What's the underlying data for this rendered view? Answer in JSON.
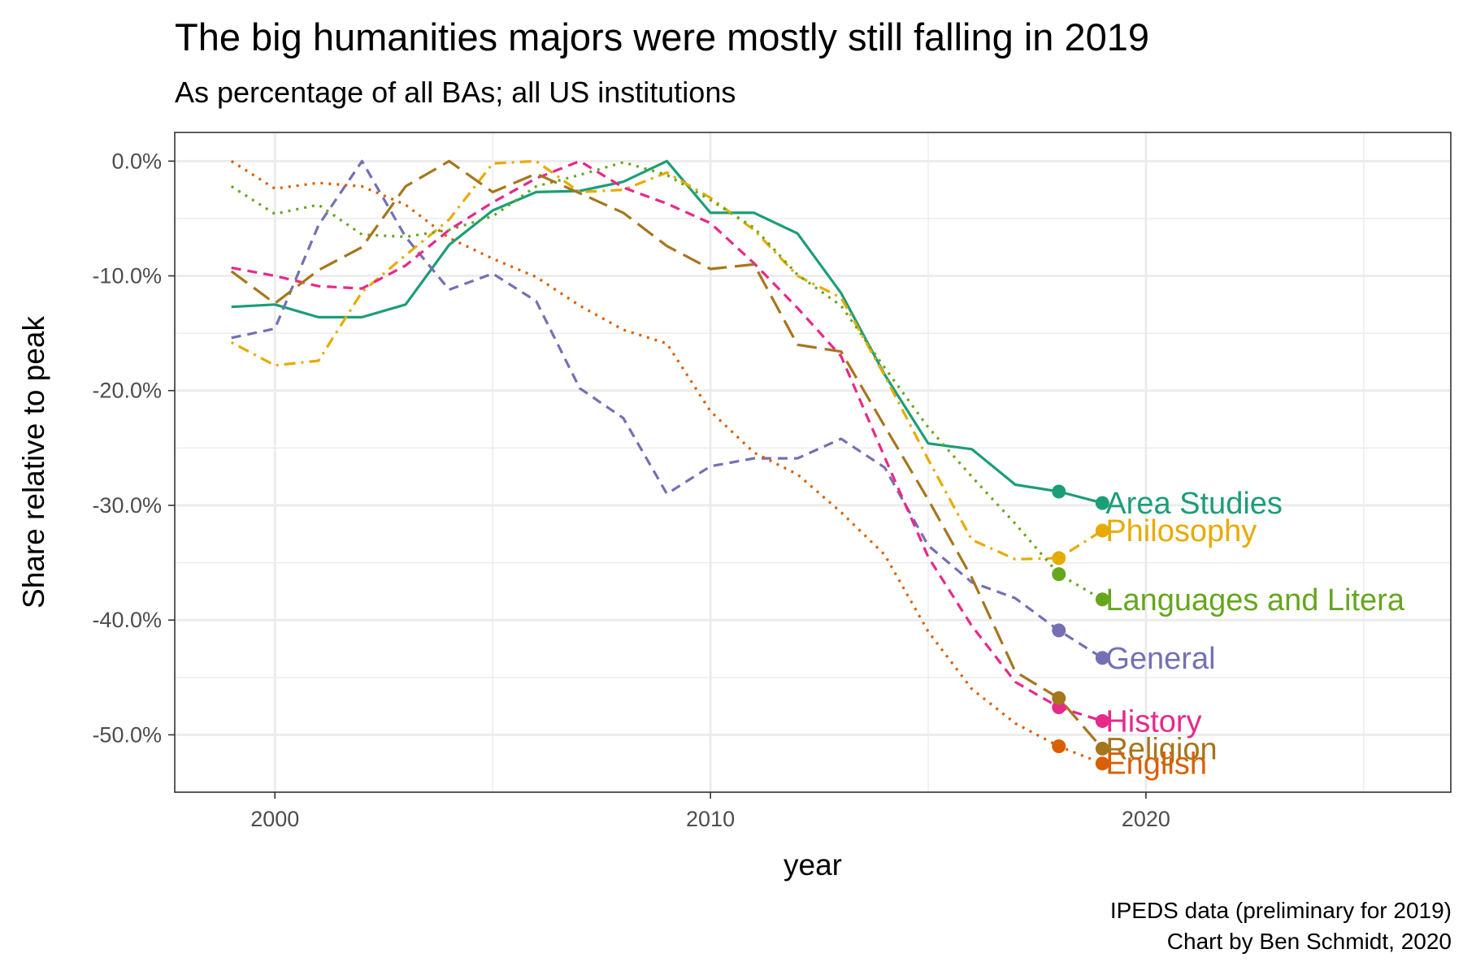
{
  "chart_data": {
    "type": "line",
    "title": "The big humanities majors were mostly still falling in 2019",
    "subtitle": "As percentage of all BAs; all US institutions",
    "xlabel": "year",
    "ylabel": "Share relative to peak",
    "caption": [
      "IPEDS data (preliminary for 2019)",
      "Chart by Ben Schmidt, 2020"
    ],
    "xlim": [
      1997.7,
      2027.0
    ],
    "ylim": [
      -55.0,
      2.5
    ],
    "x_ticks": [
      2000,
      2010,
      2020
    ],
    "x_tick_labels": [
      "2000",
      "2010",
      "2020"
    ],
    "y_ticks": [
      0,
      -10,
      -20,
      -30,
      -40,
      -50
    ],
    "y_tick_labels": [
      "0.0%",
      "-10.0%",
      "-20.0%",
      "-30.0%",
      "-40.0%",
      "-50.0%"
    ],
    "grid": true,
    "legend": "none (series labelled at end of lines)",
    "x": [
      1999,
      2000,
      2001,
      2002,
      2003,
      2004,
      2005,
      2006,
      2007,
      2008,
      2009,
      2010,
      2011,
      2012,
      2013,
      2014,
      2015,
      2016,
      2017,
      2018,
      2019
    ],
    "series": [
      {
        "name": "Area Studies",
        "color": "#1b9e77",
        "dash": "solid",
        "values": [
          -12.7,
          -12.5,
          -13.6,
          -13.6,
          -12.5,
          -7.3,
          -4.3,
          -2.7,
          -2.6,
          -1.8,
          0.0,
          -4.5,
          -4.5,
          -6.3,
          -11.5,
          -18.6,
          -24.6,
          -25.1,
          -28.2,
          -28.8,
          -29.8
        ]
      },
      {
        "name": "Philosophy",
        "color": "#e6ab02",
        "dash": "dotdash",
        "values": [
          -15.8,
          -17.8,
          -17.4,
          -11.4,
          -8.2,
          -5.1,
          -0.2,
          0.0,
          -2.7,
          -2.5,
          -1.0,
          -3.2,
          -6.0,
          -10.0,
          -11.9,
          -18.7,
          -26.0,
          -33.0,
          -34.7,
          -34.6,
          -32.2
        ]
      },
      {
        "name": "Languages and Literature",
        "color": "#66a61e",
        "dash": "dotted",
        "values": [
          -2.2,
          -4.6,
          -3.8,
          -6.4,
          -6.6,
          -6.0,
          -4.8,
          -2.2,
          -1.2,
          -0.1,
          -1.2,
          -3.4,
          -5.8,
          -9.9,
          -12.6,
          -18.0,
          -23.2,
          -27.5,
          -31.6,
          -36.0,
          -38.2
        ]
      },
      {
        "name": "General",
        "color": "#7570b3",
        "dash": "dashed",
        "values": [
          -15.4,
          -14.6,
          -5.6,
          0.0,
          -6.6,
          -11.2,
          -9.8,
          -12.2,
          -19.8,
          -22.4,
          -29.0,
          -26.6,
          -25.9,
          -25.9,
          -24.2,
          -26.7,
          -33.5,
          -36.7,
          -38.1,
          -40.9,
          -43.3
        ]
      },
      {
        "name": "History",
        "color": "#e7298a",
        "dash": "dashed",
        "values": [
          -9.3,
          -10.0,
          -10.9,
          -11.1,
          -9.1,
          -6.0,
          -3.6,
          -1.5,
          0.0,
          -2.3,
          -3.7,
          -5.4,
          -8.9,
          -12.8,
          -17.0,
          -25.8,
          -34.5,
          -40.5,
          -45.4,
          -47.6,
          -48.8
        ]
      },
      {
        "name": "Religion",
        "color": "#a6761d",
        "dash": "longdash",
        "values": [
          -9.6,
          -12.4,
          -9.5,
          -7.5,
          -2.2,
          0.0,
          -2.7,
          -1.1,
          -2.8,
          -4.5,
          -7.4,
          -9.4,
          -9.0,
          -16.0,
          -16.6,
          -23.1,
          -29.5,
          -36.3,
          -44.5,
          -46.8,
          -51.2
        ]
      },
      {
        "name": "English",
        "color": "#d95f02",
        "dash": "dotted",
        "values": [
          0.0,
          -2.4,
          -1.9,
          -2.2,
          -3.8,
          -6.7,
          -8.5,
          -10.1,
          -12.6,
          -14.7,
          -15.9,
          -21.8,
          -25.4,
          -27.3,
          -30.6,
          -34.3,
          -41.0,
          -46.0,
          -49.0,
          -51.0,
          -52.5
        ]
      }
    ],
    "end_labels": [
      {
        "series": "Area Studies",
        "text": "Area Studies",
        "y": -29.8
      },
      {
        "series": "Philosophy",
        "text": "Philosophy",
        "y": -32.2
      },
      {
        "series": "Languages and Literature",
        "text": "Languages and Litera",
        "y": -38.2
      },
      {
        "series": "General",
        "text": "General",
        "y": -43.3
      },
      {
        "series": "History",
        "text": "History",
        "y": -48.8
      },
      {
        "series": "Religion",
        "text": "Religion",
        "y": -51.2
      },
      {
        "series": "English",
        "text": "English",
        "y": -52.5
      }
    ],
    "highlighted_points_x": [
      2018,
      2019
    ]
  }
}
